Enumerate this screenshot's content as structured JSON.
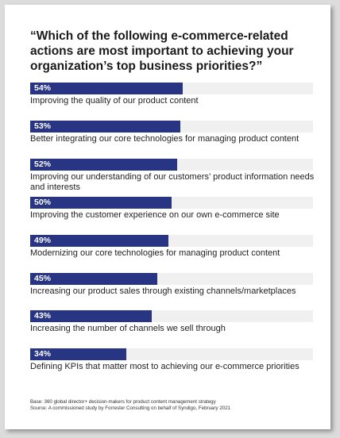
{
  "chart_data": {
    "type": "bar",
    "title": "“Which of the following e-commerce-related actions are most important to achieving your organization’s top business priorities?”",
    "categories": [
      "Improving the quality of our product content",
      "Better integrating our core technologies for managing product content",
      "Improving our understanding of our customers’ product information needs and interests",
      "Improving the customer experience on our own e-commerce site",
      "Modernizing our core technologies for managing product content",
      "Increasing our product sales through existing channels/marketplaces",
      "Increasing the number of channels we sell through",
      "Defining KPIs that matter most to achieving our e-commerce priorities"
    ],
    "values": [
      54,
      53,
      52,
      50,
      49,
      45,
      43,
      34
    ],
    "value_labels": [
      "54%",
      "53%",
      "52%",
      "50%",
      "49%",
      "45%",
      "43%",
      "34%"
    ],
    "xlim": [
      0,
      100
    ],
    "orientation": "horizontal",
    "bar_color": "#283583",
    "track_color": "#f0f0f0",
    "grid": false
  },
  "footnote": {
    "base": "Base: 360 global director+ decision-makers for product content management strategy",
    "source": "Source: A commissioned study by Forrester Consulting on behalf of Syndigo, February 2021"
  }
}
